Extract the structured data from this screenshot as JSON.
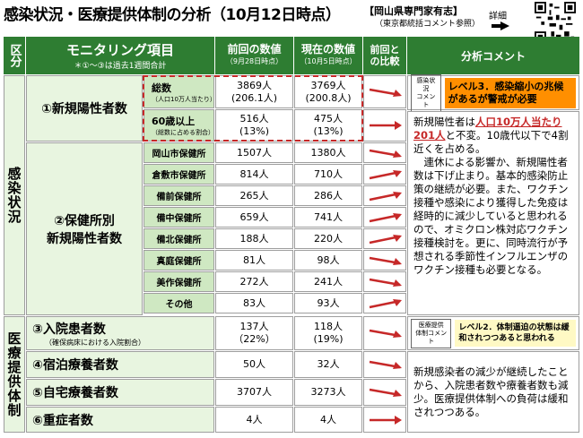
{
  "header": {
    "title": "感染状況・医療提供体制の分析（10月12日時点）",
    "source": "【岡山県専門家有志】",
    "source_note": "（東京都統括コメント参照）",
    "details": "詳細"
  },
  "columns": {
    "category": "区分",
    "item": "モニタリング項目",
    "item_note": "＊①～③は過去1週間合計",
    "prev": "前回の数値",
    "prev_date": "（9月28日時点）",
    "curr": "現在の数値",
    "curr_date": "（10月5日時点）",
    "compare": "前回との比較",
    "comment": "分析コメント"
  },
  "sections": {
    "infection": "感染状況",
    "medical": "医療提供体制"
  },
  "items": {
    "new_cases": "①新規陽性者数",
    "by_center": "②保健所別\n新規陽性者数",
    "hospitalized": "③入院患者数",
    "hospitalized_note": "（確保病床における入院割合）",
    "lodging": "④宿泊療養者数",
    "home": "⑤自宅療養者数",
    "severe": "⑥重症者数"
  },
  "rows": {
    "total_label": "総数",
    "total_note": "（人口10万人当たり）",
    "total_prev": "3869人",
    "total_prev2": "(206.1人)",
    "total_curr": "3769人",
    "total_curr2": "(200.8人)",
    "over60_label": "60歳以上",
    "over60_note": "（総数に占める割合）",
    "over60_prev": "516人",
    "over60_prev2": "(13%)",
    "over60_curr": "475人",
    "over60_curr2": "(13%)",
    "hosp_prev": "137人",
    "hosp_prev2": "（22%）",
    "hosp_curr": "118人",
    "hosp_curr2": "(19%)",
    "lodging_prev": "50人",
    "lodging_curr": "32人",
    "home_prev": "3707人",
    "home_curr": "3273人",
    "severe_prev": "4人",
    "severe_curr": "4人"
  },
  "centers": [
    {
      "name": "岡山市保健所",
      "prev": "1507人",
      "curr": "1380人"
    },
    {
      "name": "倉敷市保健所",
      "prev": "814人",
      "curr": "710人"
    },
    {
      "name": "備前保健所",
      "prev": "265人",
      "curr": "286人"
    },
    {
      "name": "備中保健所",
      "prev": "659人",
      "curr": "741人"
    },
    {
      "name": "備北保健所",
      "prev": "188人",
      "curr": "220人"
    },
    {
      "name": "真庭保健所",
      "prev": "81人",
      "curr": "98人"
    },
    {
      "name": "美作保健所",
      "prev": "272人",
      "curr": "241人"
    },
    {
      "name": "その他",
      "prev": "83人",
      "curr": "93人"
    }
  ],
  "levels": {
    "infection_tag": "感染状況\nコメント",
    "infection_level": "レベル3．感染縮小の兆候があるが警戒が必要",
    "medical_tag": "医療提供\n体制コメント",
    "medical_level": "レベル2．体制逼迫の状態は緩和されつつあると思われる"
  },
  "comments": {
    "infection_pre": "新規陽性者は",
    "infection_red": "人口10万人当たり201人",
    "infection_post": "と不変。10歳代以下で4割近くを占める。\n　連休による影響か、新規陽性者数は下げ止まり。基本的感染防止策の継続が必要。また、ワクチン接種や感染により獲得した免疫は経時的に減少していると思われるので、オミクロン株対応ワクチン接種検討を。更に、同時流行が予想される季節性インフルエンザのワクチン接種も必要となる。",
    "medical": "新規感染者の減少が継続したことから、入院患者数や療養者数も減少。医療提供体制への負荷は緩和されつつある。"
  },
  "colors": {
    "accent": "#2e7d32",
    "arrow": "#c62828",
    "level3": "#ff8f00",
    "level2": "#fff9c4"
  }
}
